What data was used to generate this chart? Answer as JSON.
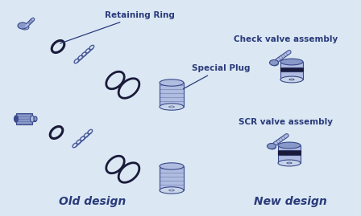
{
  "background_color": "#dbe8f4",
  "fig_width": 4.48,
  "fig_height": 2.69,
  "dpi": 100,
  "label_color": "#2a3a7a",
  "part_color_light": "#b0bce0",
  "part_color_mid": "#8898c8",
  "part_color_dark": "#3a4a90",
  "part_edge_color": "#3a4a8a",
  "oring_color": "#1a1a3a",
  "spring_color": "#4a5a9a",
  "plug_face_color": "#c8d4e8",
  "old_design_label": "Old design",
  "new_design_label": "New design",
  "retaining_ring_label": "Retaining Ring",
  "special_plug_label": "Special Plug",
  "check_valve_label": "Check valve assembly",
  "scr_valve_label": "SCR valve assembly"
}
